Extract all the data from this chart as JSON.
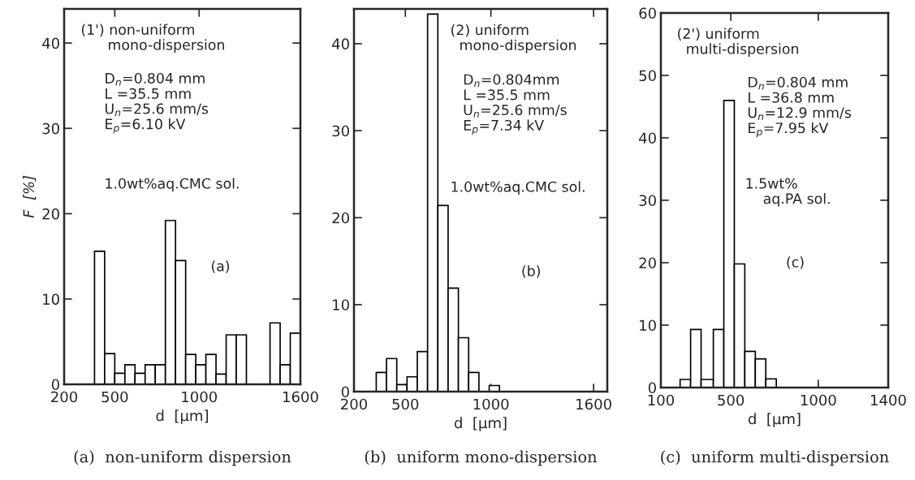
{
  "chart_data": [
    {
      "type": "histogram",
      "title": "(a)  non-uniform dispersion",
      "xlabel": "d  [µm]",
      "ylabel": "F  [%]",
      "bins": [
        380,
        440,
        500,
        560,
        620,
        680,
        740,
        800,
        860,
        920,
        980,
        1040,
        1100,
        1160,
        1220,
        1280,
        1420,
        1480,
        1540,
        1600
      ],
      "values": [
        15.6,
        3.6,
        1.3,
        2.3,
        1.3,
        2.3,
        2.3,
        19.2,
        14.5,
        3.5,
        2.3,
        3.5,
        1.2,
        5.8,
        5.8,
        0,
        7.2,
        2.3,
        6.0
      ],
      "color": "#ffffff",
      "xlim": [
        200,
        1600
      ],
      "xticks": [
        200,
        500,
        1000,
        1600
      ],
      "ylim": [
        0,
        44
      ],
      "yticks": [
        0,
        10,
        20,
        30,
        40
      ],
      "grid": false,
      "annotations": [
        "(1') non-uniform\n      mono-dispersion",
        "D$_{n}$=0.804 mm\nL =35.5 mm\nU$_{n}$=25.6 mm/s\nE$_{p}$=6.10 kV",
        "1.0wt%aq.CMC sol.",
        "(a)"
      ]
    },
    {
      "type": "histogram",
      "title": "(b)  uniform mono-dispersion",
      "xlabel": "d  [µm]",
      "bins": [
        330,
        390,
        450,
        510,
        570,
        630,
        690,
        750,
        810,
        870,
        930,
        990,
        1050
      ],
      "values": [
        2.2,
        3.8,
        0.8,
        1.7,
        4.6,
        43.4,
        21.4,
        11.9,
        6.2,
        2.2,
        0,
        0.7
      ],
      "color": "#ffffff",
      "xlim": [
        200,
        1680
      ],
      "xticks": [
        200,
        500,
        1000,
        1600
      ],
      "ylim": [
        0,
        44
      ],
      "yticks": [
        0,
        10,
        20,
        30,
        40
      ],
      "grid": false,
      "annotations": [
        "(2) uniform\n  mono-dispersion",
        "D$_{n}$=0.804mm\nL =35.5 mm\nU$_{n}$=25.6 mm/s\nE$_{p}$=7.34 kV",
        "1.0wt%aq.CMC sol.",
        "(b)"
      ]
    },
    {
      "type": "histogram",
      "title": "(c)  uniform multi-dispersion",
      "xlabel": "d  [µm]",
      "bins": [
        210,
        270,
        330,
        400,
        460,
        520,
        580,
        640,
        700,
        760
      ],
      "values": [
        1.3,
        9.3,
        1.3,
        9.3,
        46,
        19.8,
        5.8,
        4.6,
        1.4
      ],
      "color": "#ffffff",
      "xlim": [
        100,
        1400
      ],
      "xticks": [
        100,
        500,
        1000,
        1400
      ],
      "ylim": [
        0,
        60
      ],
      "yticks": [
        0,
        10,
        20,
        30,
        40,
        50,
        60
      ],
      "grid": false,
      "annotations": [
        "(2') uniform\n  multi-dispersion",
        "D$_{n}$=0.804 mm\nL =36.8 mm\nU$_{n}$=12.9 mm/s\nE$_{p}$=7.95 kV",
        "1.5wt%\n    aq.PA sol.",
        "(c)"
      ]
    }
  ]
}
